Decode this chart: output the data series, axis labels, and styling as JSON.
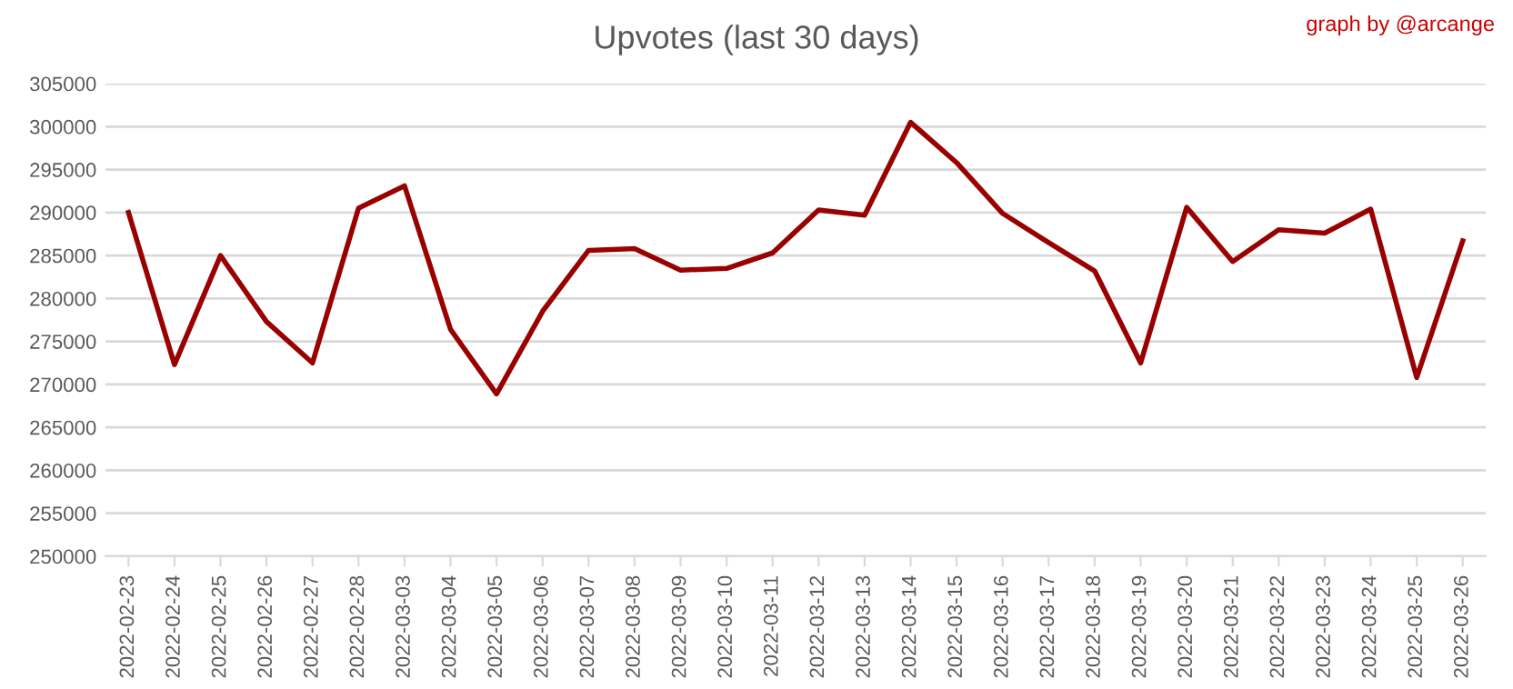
{
  "chart_data": {
    "type": "line",
    "title": "Upvotes (last 30 days)",
    "annotations": [
      "graph by @arcange"
    ],
    "categories": [
      "2022-02-23",
      "2022-02-24",
      "2022-02-25",
      "2022-02-26",
      "2022-02-27",
      "2022-02-28",
      "2022-03-03",
      "2022-03-04",
      "2022-03-05",
      "2022-03-06",
      "2022-03-07",
      "2022-03-08",
      "2022-03-09",
      "2022-03-10",
      "2022-03-11",
      "2022-03-12",
      "2022-03-13",
      "2022-03-14",
      "2022-03-15",
      "2022-03-16",
      "2022-03-17",
      "2022-03-18",
      "2022-03-19",
      "2022-03-20",
      "2022-03-21",
      "2022-03-22",
      "2022-03-23",
      "2022-03-24",
      "2022-03-25",
      "2022-03-26"
    ],
    "series": [
      {
        "color": "#990000",
        "values": [
          290000,
          272300,
          285000,
          277300,
          272500,
          290500,
          293100,
          276400,
          268900,
          278500,
          285600,
          285800,
          283300,
          283500,
          285300,
          290300,
          289700,
          300500,
          295800,
          289900,
          286500,
          283200,
          272500,
          290600,
          284300,
          288000,
          287600,
          290400,
          270800,
          286700
        ]
      }
    ],
    "ylim": [
      250000,
      305000
    ],
    "yticks": [
      250000,
      255000,
      260000,
      265000,
      270000,
      275000,
      280000,
      285000,
      290000,
      295000,
      300000,
      305000
    ],
    "grid": "y",
    "legend": false,
    "marker": "none",
    "line_style": "solid"
  }
}
